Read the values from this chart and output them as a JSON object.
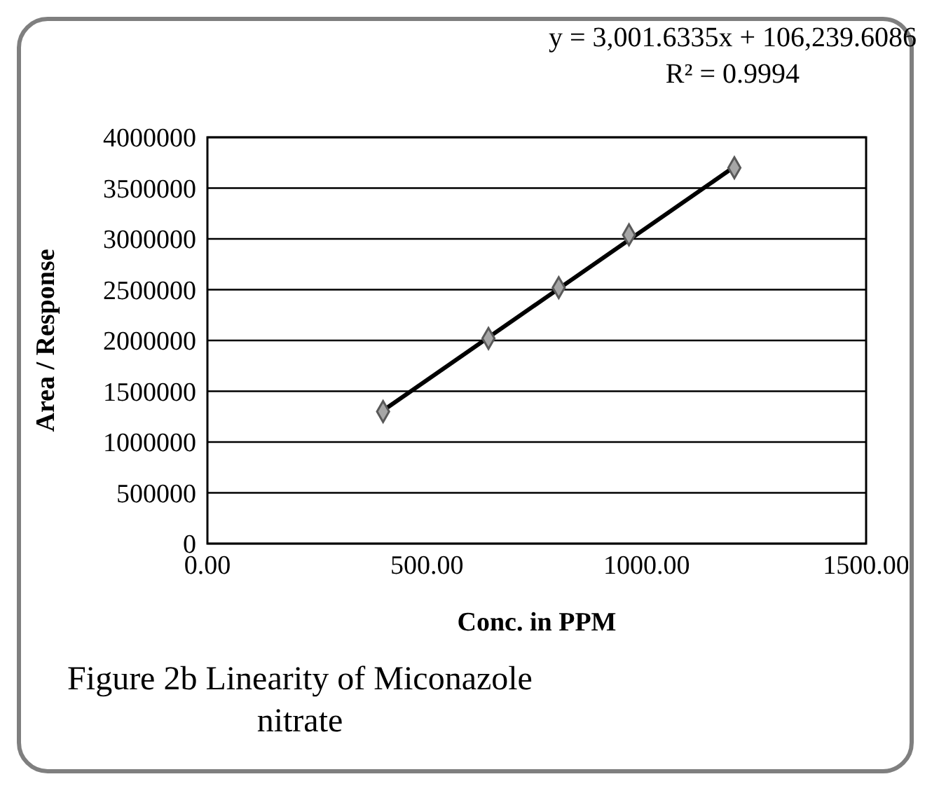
{
  "chart_data": {
    "type": "scatter",
    "xlabel": "Conc. in PPM",
    "ylabel": "Area / Response",
    "annotations": [
      "y = 3,001.6335x + 106,239.6086",
      "R² = 0.9994",
      "Figure 2b Linearity of Miconazole nitrate"
    ],
    "series": [
      {
        "color": "#a6a6a6",
        "marker": "diamond",
        "x": [
          400,
          640,
          800,
          960,
          1200
        ],
        "values": [
          1300000,
          2020000,
          2520000,
          3040000,
          3700000
        ]
      },
      {
        "type": "line",
        "color": "#000000",
        "marker": "none",
        "line_style": "solid",
        "x": [
          400,
          1200
        ],
        "values": [
          1310000,
          3710000
        ]
      }
    ],
    "xlim": [
      0,
      1500
    ],
    "xticks": [
      {
        "value": 0,
        "label": "0.00"
      },
      {
        "value": 500,
        "label": "500.00"
      },
      {
        "value": 1000,
        "label": "1000.00"
      },
      {
        "value": 1500,
        "label": "1500.00"
      }
    ],
    "ylim": [
      0,
      4000000
    ],
    "yticks": [
      0,
      500000,
      1000000,
      1500000,
      2000000,
      2500000,
      3000000,
      3500000,
      4000000
    ],
    "grid": "y"
  }
}
